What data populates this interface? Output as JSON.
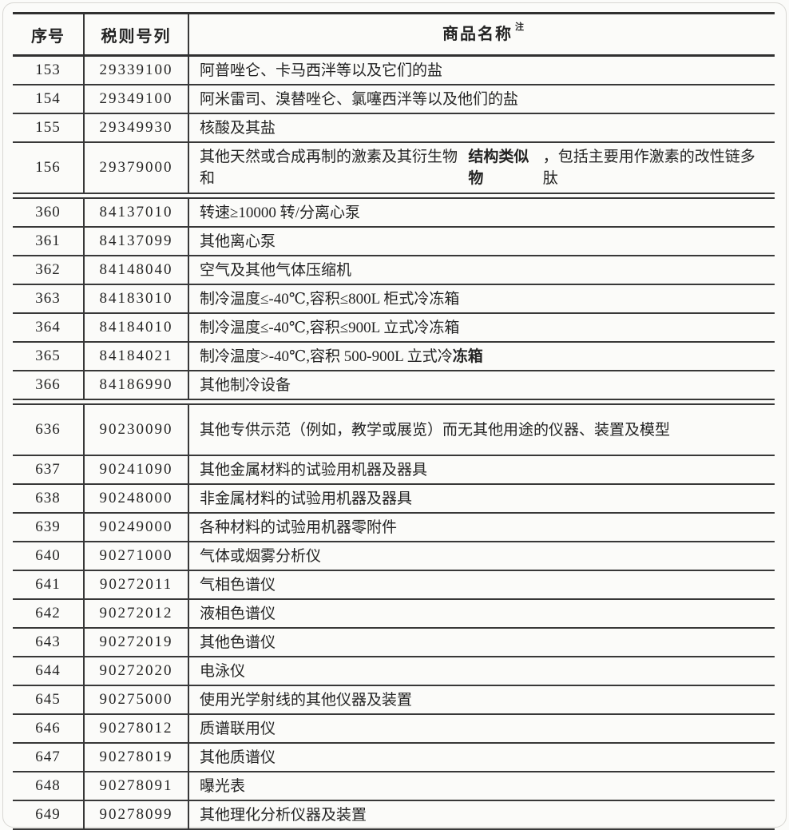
{
  "header": {
    "seq": "序号",
    "code": "税则号列",
    "name": "商品名称",
    "note": "注"
  },
  "colors": {
    "line": "#383838",
    "text": "#242424",
    "frame": "#d8d7d3",
    "background": "#fbfbf9"
  },
  "sections": [
    {
      "rows": [
        {
          "seq": "153",
          "code": "29339100",
          "name": [
            {
              "t": "阿普唑仑、卡马西泮等以及它们的盐"
            }
          ]
        },
        {
          "seq": "154",
          "code": "29349100",
          "name": [
            {
              "t": "阿米雷司、溴替唑仑、氯噻西泮等以及他们的盐"
            }
          ]
        },
        {
          "seq": "155",
          "code": "29349930",
          "name": [
            {
              "t": "核酸及其盐"
            }
          ]
        },
        {
          "seq": "156",
          "code": "29379000",
          "tall": true,
          "name": [
            {
              "t": "其他天然或合成再制的激素及其衍生物和"
            },
            {
              "t": "结构类似物",
              "bold": true
            },
            {
              "t": "，包括主要用作激素的改性链多肽"
            }
          ]
        }
      ]
    },
    {
      "rows": [
        {
          "seq": "360",
          "code": "84137010",
          "name": [
            {
              "t": "转速≥10000 转/分离心泵"
            }
          ]
        },
        {
          "seq": "361",
          "code": "84137099",
          "name": [
            {
              "t": "其他离心泵"
            }
          ]
        },
        {
          "seq": "362",
          "code": "84148040",
          "name": [
            {
              "t": "空气及其他气体压缩机"
            }
          ]
        },
        {
          "seq": "363",
          "code": "84183010",
          "name": [
            {
              "t": "制冷温度≤-40℃,容积≤800L 柜式冷冻箱"
            }
          ]
        },
        {
          "seq": "364",
          "code": "84184010",
          "name": [
            {
              "t": "制冷温度≤-40℃,容积≤900L 立式冷冻箱"
            }
          ]
        },
        {
          "seq": "365",
          "code": "84184021",
          "name": [
            {
              "t": "制冷温度>-40℃,容积 500-900L 立式冷"
            },
            {
              "t": "冻箱",
              "bold": true
            }
          ]
        },
        {
          "seq": "366",
          "code": "84186990",
          "name": [
            {
              "t": "其他制冷设备"
            }
          ]
        }
      ]
    },
    {
      "rows": [
        {
          "seq": "636",
          "code": "90230090",
          "tall": true,
          "name": [
            {
              "t": "其他专供示范（例如，教学或展览）而无其他用途的仪器、装置及模型"
            }
          ]
        },
        {
          "seq": "637",
          "code": "90241090",
          "name": [
            {
              "t": "其他金属材料的试验用机器及器具"
            }
          ]
        },
        {
          "seq": "638",
          "code": "90248000",
          "name": [
            {
              "t": "非金属材料的试验用机器及器具"
            }
          ]
        },
        {
          "seq": "639",
          "code": "90249000",
          "name": [
            {
              "t": "各种材料的试验用机器零附件"
            }
          ]
        },
        {
          "seq": "640",
          "code": "90271000",
          "name": [
            {
              "t": "气体或烟雾分析仪"
            }
          ]
        },
        {
          "seq": "641",
          "code": "90272011",
          "name": [
            {
              "t": "气相色谱仪"
            }
          ]
        },
        {
          "seq": "642",
          "code": "90272012",
          "name": [
            {
              "t": "液相色谱仪"
            }
          ]
        },
        {
          "seq": "643",
          "code": "90272019",
          "name": [
            {
              "t": "其他色谱仪"
            }
          ]
        },
        {
          "seq": "644",
          "code": "90272020",
          "name": [
            {
              "t": "电泳仪"
            }
          ]
        },
        {
          "seq": "645",
          "code": "90275000",
          "name": [
            {
              "t": "使用光学射线的其他仪器及装置"
            }
          ]
        },
        {
          "seq": "646",
          "code": "90278012",
          "name": [
            {
              "t": "质谱联用仪"
            }
          ]
        },
        {
          "seq": "647",
          "code": "90278019",
          "name": [
            {
              "t": "其他质谱仪"
            }
          ]
        },
        {
          "seq": "648",
          "code": "90278091",
          "name": [
            {
              "t": "曝光表"
            }
          ]
        },
        {
          "seq": "649",
          "code": "90278099",
          "name": [
            {
              "t": "其他理化分析仪器及装置"
            }
          ]
        }
      ]
    }
  ]
}
